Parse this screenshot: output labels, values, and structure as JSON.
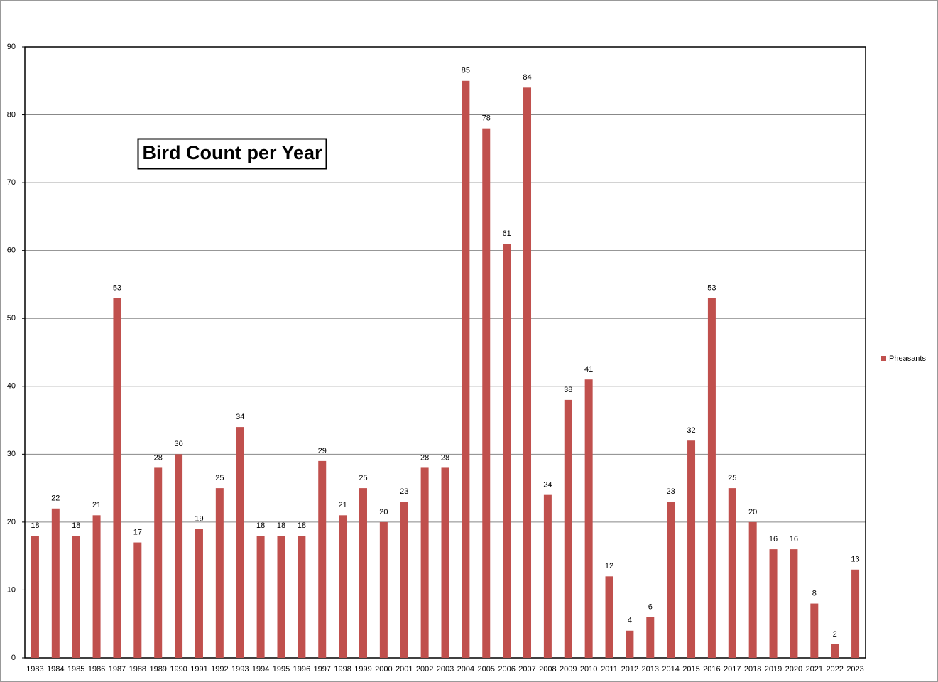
{
  "chart_data": {
    "type": "bar",
    "title": "Bird Count per Year",
    "categories": [
      "1983",
      "1984",
      "1985",
      "1986",
      "1987",
      "1988",
      "1989",
      "1990",
      "1991",
      "1992",
      "1993",
      "1994",
      "1995",
      "1996",
      "1997",
      "1998",
      "1999",
      "2000",
      "2001",
      "2002",
      "2003",
      "2004",
      "2005",
      "2006",
      "2007",
      "2008",
      "2009",
      "2010",
      "2011",
      "2012",
      "2013",
      "2014",
      "2015",
      "2016",
      "2017",
      "2018",
      "2019",
      "2020",
      "2021",
      "2022",
      "2023"
    ],
    "series": [
      {
        "name": "Pheasants",
        "color": "#c0504d",
        "values": [
          18,
          22,
          18,
          21,
          53,
          17,
          28,
          30,
          19,
          25,
          34,
          18,
          18,
          18,
          29,
          21,
          25,
          20,
          23,
          28,
          28,
          85,
          78,
          61,
          84,
          24,
          38,
          41,
          12,
          4,
          6,
          23,
          32,
          53,
          25,
          20,
          16,
          16,
          8,
          2,
          13
        ]
      }
    ],
    "ylim": [
      0,
      90
    ],
    "yticks": [
      0,
      10,
      20,
      30,
      40,
      50,
      60,
      70,
      80,
      90
    ],
    "grid": true,
    "legend": "right"
  }
}
